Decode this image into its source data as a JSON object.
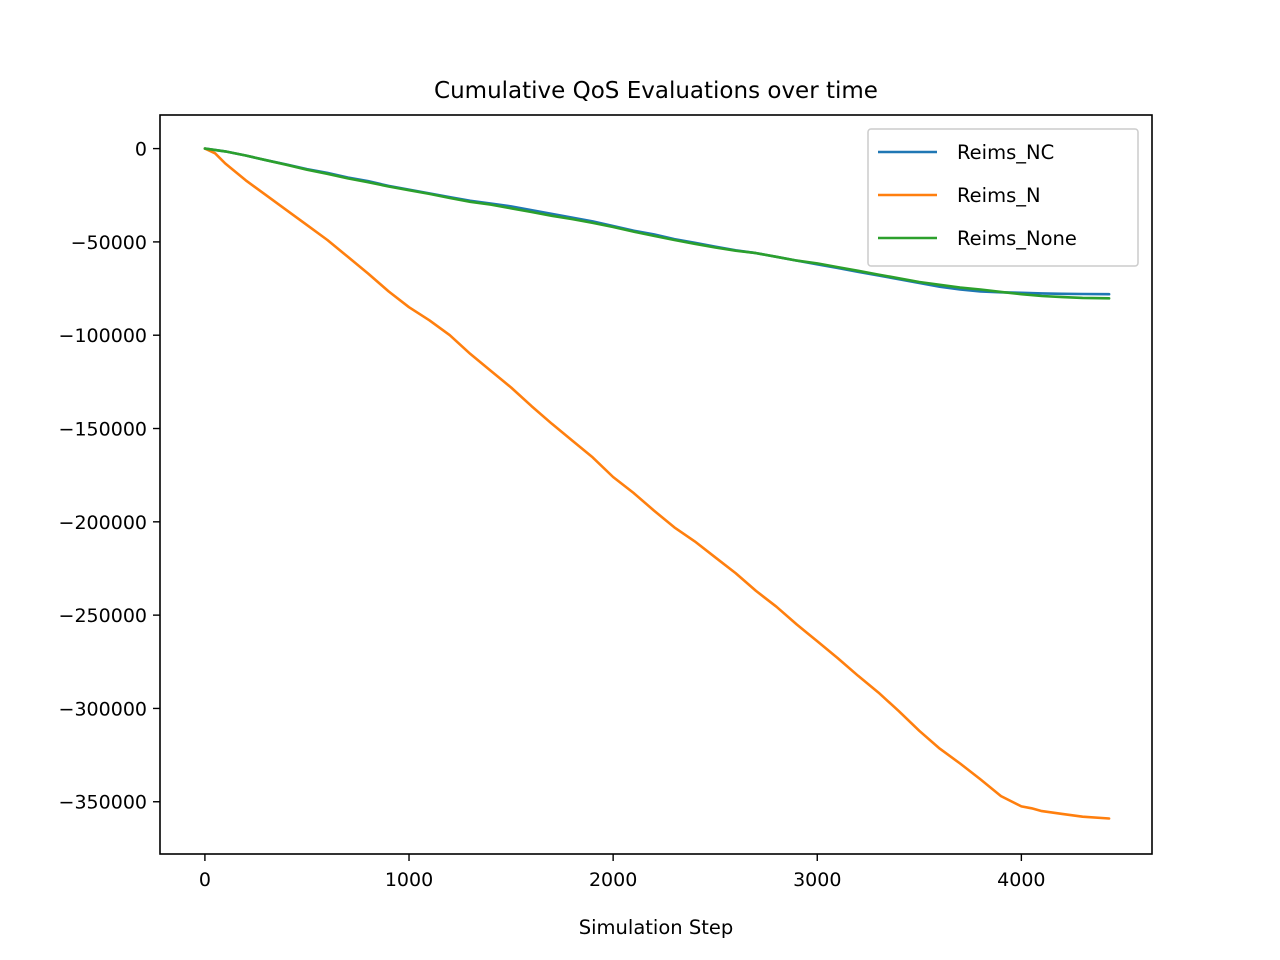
{
  "chart_data": {
    "type": "line",
    "title": "Cumulative QoS Evaluations over time",
    "xlabel": "Simulation Step",
    "ylabel": "",
    "xlim": [
      -220,
      4640
    ],
    "ylim": [
      -378000,
      18000
    ],
    "xticks": [
      0,
      1000,
      2000,
      3000,
      4000
    ],
    "xtick_labels": [
      "0",
      "1000",
      "2000",
      "3000",
      "4000"
    ],
    "yticks": [
      0,
      -50000,
      -100000,
      -150000,
      -200000,
      -250000,
      -300000,
      -350000
    ],
    "ytick_labels": [
      "0",
      "−50000",
      "−100000",
      "−150000",
      "−200000",
      "−250000",
      "−300000",
      "−350000"
    ],
    "grid": false,
    "legend_position": "top-right",
    "series": [
      {
        "name": "Reims_NC",
        "color": "#1f77b4",
        "x": [
          0,
          100,
          200,
          300,
          400,
          500,
          600,
          700,
          800,
          900,
          1000,
          1100,
          1200,
          1300,
          1400,
          1500,
          1600,
          1700,
          1800,
          1900,
          2000,
          2100,
          2200,
          2300,
          2400,
          2500,
          2600,
          2700,
          2800,
          2900,
          3000,
          3100,
          3200,
          3300,
          3400,
          3500,
          3600,
          3700,
          3800,
          3900,
          4000,
          4100,
          4200,
          4300,
          4430
        ],
        "y": [
          0,
          -1500,
          -3700,
          -6200,
          -8500,
          -11000,
          -13000,
          -15500,
          -17500,
          -20000,
          -22000,
          -24000,
          -26000,
          -28000,
          -29500,
          -31000,
          -33000,
          -35000,
          -37000,
          -39000,
          -41500,
          -44000,
          -46000,
          -48500,
          -50500,
          -52500,
          -54500,
          -56000,
          -58000,
          -60000,
          -62000,
          -64000,
          -66000,
          -68000,
          -70000,
          -72000,
          -74000,
          -75500,
          -76500,
          -77000,
          -77300,
          -77600,
          -77800,
          -77900,
          -78000
        ]
      },
      {
        "name": "Reims_N",
        "color": "#ff7f0e",
        "x": [
          0,
          50,
          100,
          200,
          300,
          400,
          500,
          600,
          700,
          800,
          900,
          1000,
          1100,
          1200,
          1300,
          1400,
          1500,
          1600,
          1700,
          1800,
          1900,
          2000,
          2100,
          2200,
          2300,
          2400,
          2500,
          2600,
          2700,
          2800,
          2900,
          3000,
          3100,
          3200,
          3300,
          3400,
          3500,
          3600,
          3700,
          3800,
          3900,
          4000,
          4050,
          4100,
          4200,
          4300,
          4430
        ],
        "y": [
          0,
          -2500,
          -8000,
          -17000,
          -25000,
          -33000,
          -41000,
          -49000,
          -58000,
          -67000,
          -76500,
          -85000,
          -92000,
          -100000,
          -110000,
          -119000,
          -128000,
          -138000,
          -147500,
          -156500,
          -165500,
          -176000,
          -184500,
          -194000,
          -203000,
          -210500,
          -219000,
          -227500,
          -237000,
          -245500,
          -255000,
          -264000,
          -273000,
          -282500,
          -291500,
          -301500,
          -312000,
          -321500,
          -329500,
          -338000,
          -347000,
          -352500,
          -353500,
          -355000,
          -356500,
          -358000,
          -359000
        ]
      },
      {
        "name": "Reims_None",
        "color": "#2ca02c",
        "x": [
          0,
          100,
          200,
          300,
          400,
          500,
          600,
          700,
          800,
          900,
          1000,
          1100,
          1200,
          1300,
          1400,
          1500,
          1600,
          1700,
          1800,
          1900,
          2000,
          2100,
          2200,
          2300,
          2400,
          2500,
          2600,
          2700,
          2800,
          2900,
          3000,
          3100,
          3200,
          3300,
          3400,
          3500,
          3600,
          3700,
          3800,
          3900,
          4000,
          4100,
          4200,
          4300,
          4430
        ],
        "y": [
          0,
          -1500,
          -3700,
          -6200,
          -8700,
          -11300,
          -13500,
          -16000,
          -18000,
          -20300,
          -22300,
          -24300,
          -26500,
          -28500,
          -30000,
          -32000,
          -34000,
          -36000,
          -37800,
          -39800,
          -42000,
          -44500,
          -46800,
          -49000,
          -51000,
          -53000,
          -54700,
          -56000,
          -58000,
          -60000,
          -61500,
          -63500,
          -65500,
          -67500,
          -69500,
          -71500,
          -73000,
          -74500,
          -75500,
          -76800,
          -78000,
          -79000,
          -79600,
          -80000,
          -80200
        ]
      }
    ]
  }
}
